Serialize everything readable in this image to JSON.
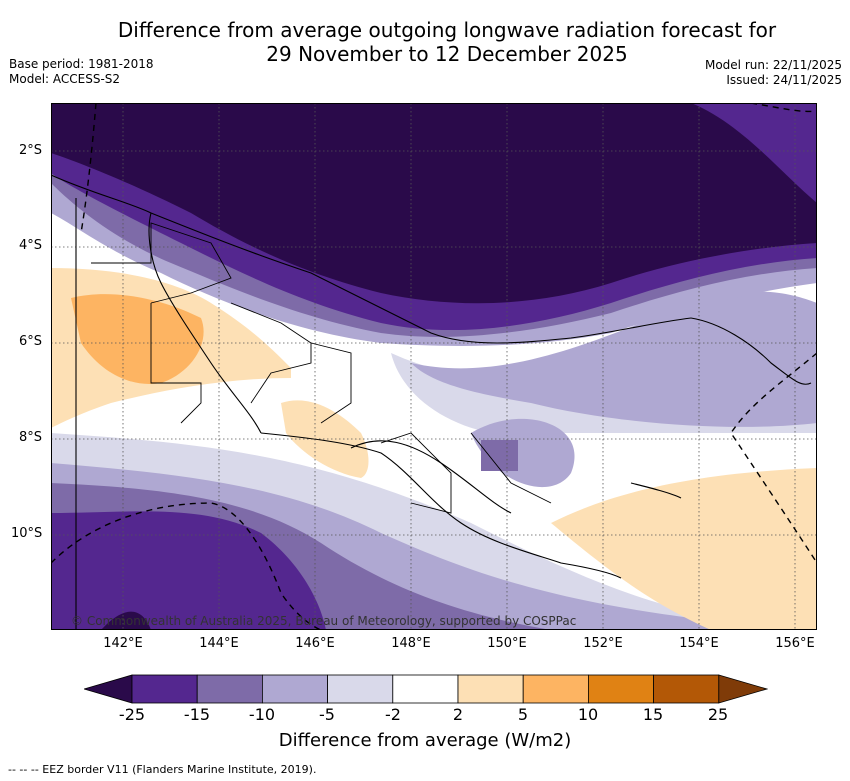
{
  "title": {
    "line1": "Difference from average outgoing longwave radiation forecast for",
    "line2": "29 November to 12 December 2025"
  },
  "meta": {
    "base_period": "Base period: 1981-2018",
    "model": "Model: ACCESS-S2",
    "model_run": "Model run: 22/11/2025",
    "issued": "Issued: 24/11/2025"
  },
  "axes": {
    "lat_labels": [
      "2°S",
      "4°S",
      "6°S",
      "8°S",
      "10°S"
    ],
    "lon_labels": [
      "142°E",
      "144°E",
      "146°E",
      "148°E",
      "150°E",
      "152°E",
      "154°E",
      "156°E"
    ]
  },
  "copyright": "© Commonwealth of Australia 2025, Bureau of Meteorology, supported by COSPPac",
  "colorbar": {
    "title": "Difference from average (W/m2)",
    "ticks": [
      "-25",
      "-15",
      "-10",
      "-5",
      "-2",
      "2",
      "5",
      "10",
      "15",
      "25"
    ],
    "colors": [
      "#2a0a4a",
      "#54278f",
      "#7e6ba8",
      "#afa8d2",
      "#d9d9ea",
      "#ffffff",
      "#fde0b5",
      "#fdb462",
      "#e08214",
      "#b35806",
      "#7f3b08"
    ]
  },
  "footer": "-- -- -- EEZ border V11 (Flanders Marine Institute, 2019)."
}
